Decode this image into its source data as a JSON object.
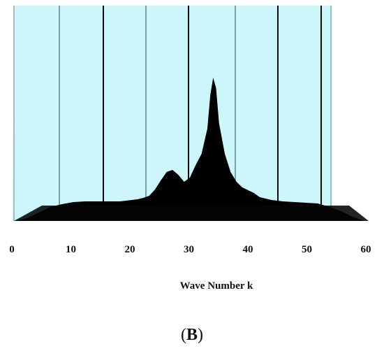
{
  "chart_data": {
    "type": "area",
    "title": "",
    "xlabel": "Wave Number k",
    "ylabel": "",
    "panel_label": {
      "open": "(",
      "letter": "B",
      "close": ")"
    },
    "xlim": [
      0,
      60
    ],
    "xticks": [
      0,
      10,
      20,
      30,
      40,
      50,
      60
    ],
    "x_tick_labels": [
      "0",
      "10",
      "20",
      "30",
      "40",
      "50",
      "60"
    ],
    "grid": true,
    "legend": "none",
    "colors": {
      "background": "#cdf6fb",
      "surface": "#9d9bdc",
      "surface_dark": "#000000",
      "grid_dark": "#0a0a0a",
      "grid_light": "#7f9ea1"
    },
    "series": [
      {
        "x": [
          0,
          2,
          4,
          6,
          8,
          10,
          12,
          14,
          16,
          18,
          20,
          21,
          22,
          23,
          24,
          25,
          26,
          27,
          28,
          29,
          30,
          31,
          32,
          33,
          33.5,
          34,
          34.5,
          35,
          36,
          37,
          38,
          39,
          40,
          41,
          42,
          44,
          46,
          48,
          50,
          52,
          54,
          56,
          58,
          60
        ],
        "y": [
          0,
          4,
          12,
          20,
          24,
          27,
          28,
          28,
          28,
          28,
          30,
          31,
          33,
          36,
          45,
          58,
          70,
          73,
          66,
          56,
          62,
          80,
          96,
          132,
          180,
          205,
          190,
          140,
          96,
          70,
          56,
          48,
          44,
          40,
          34,
          30,
          28,
          27,
          26,
          25,
          20,
          14,
          6,
          0
        ]
      }
    ]
  }
}
